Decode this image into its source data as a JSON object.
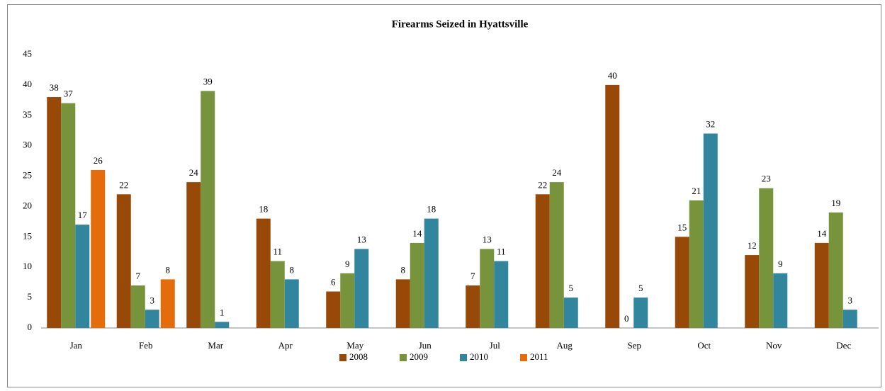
{
  "chart_data": {
    "type": "bar",
    "title": "Firearms Seized in Hyattsville",
    "categories": [
      "Jan",
      "Feb",
      "Mar",
      "Apr",
      "May",
      "Jun",
      "Jul",
      "Aug",
      "Sep",
      "Oct",
      "Nov",
      "Dec"
    ],
    "series": [
      {
        "name": "2008",
        "color": "#984807",
        "values": [
          38,
          22,
          24,
          18,
          6,
          8,
          7,
          22,
          40,
          15,
          12,
          14
        ]
      },
      {
        "name": "2009",
        "color": "#77933c",
        "values": [
          37,
          7,
          39,
          11,
          9,
          14,
          13,
          24,
          0,
          21,
          23,
          19
        ]
      },
      {
        "name": "2010",
        "color": "#31859c",
        "values": [
          17,
          3,
          1,
          8,
          13,
          18,
          11,
          5,
          5,
          32,
          9,
          3
        ]
      },
      {
        "name": "2011",
        "color": "#e46c0a",
        "values": [
          26,
          8,
          null,
          null,
          null,
          null,
          null,
          null,
          null,
          null,
          null,
          null
        ]
      }
    ],
    "ylim": [
      0,
      45
    ],
    "yticks": [
      0,
      5,
      10,
      15,
      20,
      25,
      30,
      35,
      40,
      45
    ],
    "grid": false,
    "legend": "bottom"
  }
}
